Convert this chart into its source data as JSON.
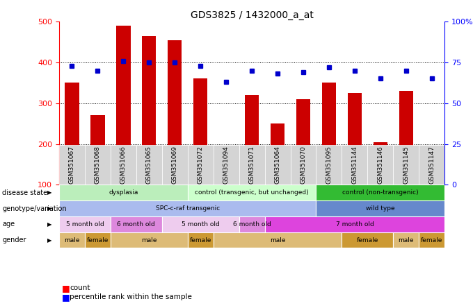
{
  "title": "GDS3825 / 1432000_a_at",
  "samples": [
    "GSM351067",
    "GSM351068",
    "GSM351066",
    "GSM351065",
    "GSM351069",
    "GSM351072",
    "GSM351094",
    "GSM351071",
    "GSM351064",
    "GSM351070",
    "GSM351095",
    "GSM351144",
    "GSM351146",
    "GSM351145",
    "GSM351147"
  ],
  "counts": [
    350,
    270,
    490,
    465,
    455,
    360,
    160,
    320,
    250,
    310,
    350,
    325,
    205,
    330,
    195
  ],
  "percentiles": [
    73,
    70,
    76,
    75,
    75,
    73,
    63,
    70,
    68,
    69,
    72,
    70,
    65,
    70,
    65
  ],
  "ylim_left": [
    100,
    500
  ],
  "ylim_right": [
    0,
    100
  ],
  "yticks_left": [
    100,
    200,
    300,
    400,
    500
  ],
  "yticks_right": [
    0,
    25,
    50,
    75,
    100
  ],
  "bar_color": "#cc0000",
  "dot_color": "#0000cc",
  "disease_state": {
    "groups": [
      {
        "label": "dysplasia",
        "start": 0,
        "end": 5,
        "color": "#bbeebb"
      },
      {
        "label": "control (transgenic, but unchanged)",
        "start": 5,
        "end": 10,
        "color": "#ccffcc"
      },
      {
        "label": "control (non-transgenic)",
        "start": 10,
        "end": 15,
        "color": "#33bb33"
      }
    ]
  },
  "genotype": {
    "groups": [
      {
        "label": "SPC-c-raf transgenic",
        "start": 0,
        "end": 10,
        "color": "#aabbee"
      },
      {
        "label": "wild type",
        "start": 10,
        "end": 15,
        "color": "#6688cc"
      }
    ]
  },
  "age": {
    "groups": [
      {
        "label": "5 month old",
        "start": 0,
        "end": 2,
        "color": "#eeccee"
      },
      {
        "label": "6 month old",
        "start": 2,
        "end": 4,
        "color": "#dd88dd"
      },
      {
        "label": "5 month old",
        "start": 4,
        "end": 7,
        "color": "#eeccee"
      },
      {
        "label": "6 month old",
        "start": 7,
        "end": 8,
        "color": "#dd88dd"
      },
      {
        "label": "7 month old",
        "start": 8,
        "end": 15,
        "color": "#dd44dd"
      }
    ]
  },
  "gender": {
    "groups": [
      {
        "label": "male",
        "start": 0,
        "end": 1,
        "color": "#ddbb77"
      },
      {
        "label": "female",
        "start": 1,
        "end": 2,
        "color": "#cc9933"
      },
      {
        "label": "male",
        "start": 2,
        "end": 5,
        "color": "#ddbb77"
      },
      {
        "label": "female",
        "start": 5,
        "end": 6,
        "color": "#cc9933"
      },
      {
        "label": "male",
        "start": 6,
        "end": 11,
        "color": "#ddbb77"
      },
      {
        "label": "female",
        "start": 11,
        "end": 13,
        "color": "#cc9933"
      },
      {
        "label": "male",
        "start": 13,
        "end": 14,
        "color": "#ddbb77"
      },
      {
        "label": "female",
        "start": 14,
        "end": 15,
        "color": "#cc9933"
      }
    ]
  },
  "row_labels": [
    "disease state",
    "genotype/variation",
    "age",
    "gender"
  ],
  "row_keys": [
    "disease_state",
    "genotype",
    "age",
    "gender"
  ],
  "legend_count_label": "count",
  "legend_pct_label": "percentile rank within the sample"
}
